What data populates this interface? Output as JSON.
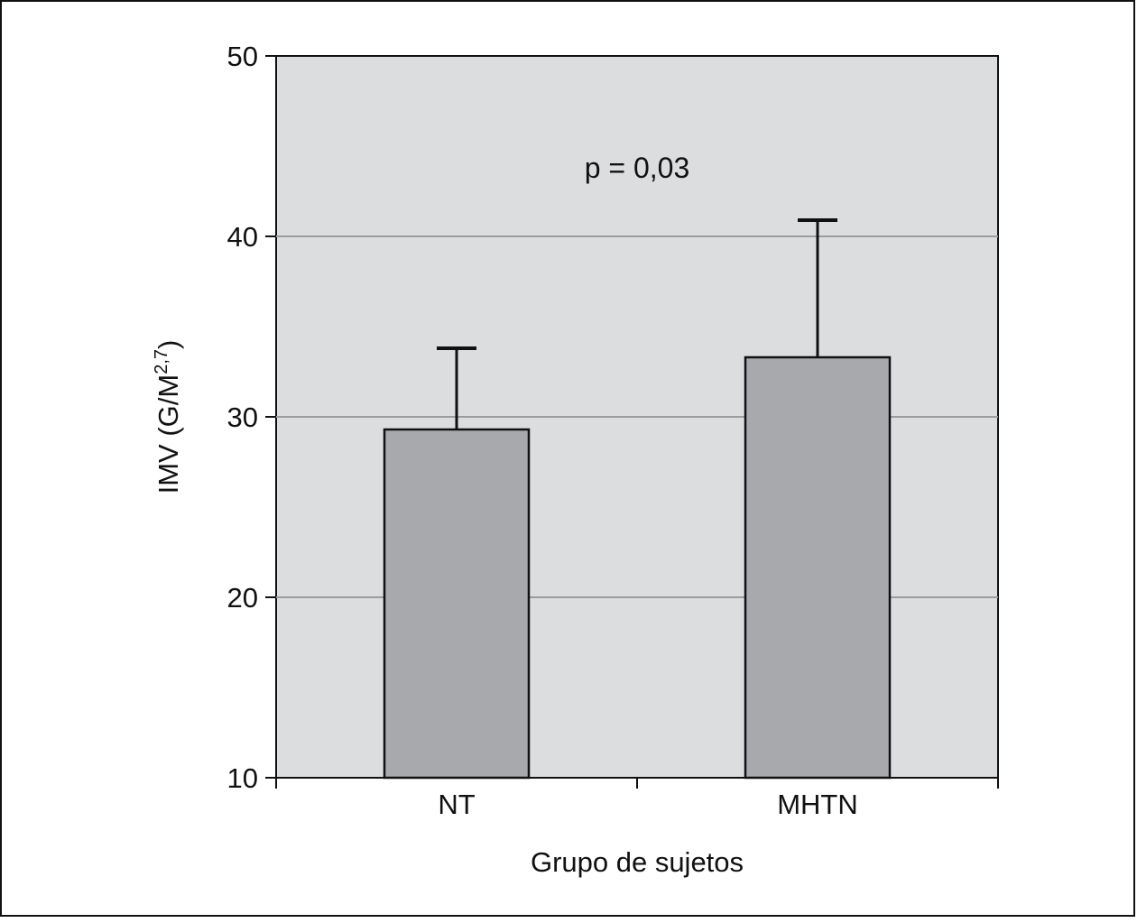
{
  "chart_data": {
    "type": "bar",
    "categories": [
      "NT",
      "MHTN"
    ],
    "values": [
      29.3,
      33.3
    ],
    "error_plus": [
      4.5,
      7.6
    ],
    "xlabel": "Grupo de sujetos",
    "ylabel_main": "IMV (G/M",
    "ylabel_sup": "2,7",
    "ylabel_end": ")",
    "ylim": [
      10,
      50
    ],
    "yticks": [
      10,
      20,
      30,
      40,
      50
    ],
    "annotation": "p = 0,03",
    "grid": true,
    "colors": {
      "plot_background": "#dcdddf",
      "bar_fill": "#a8a9ac",
      "gridline": "#9c9c9c",
      "axis": "#111111"
    }
  }
}
